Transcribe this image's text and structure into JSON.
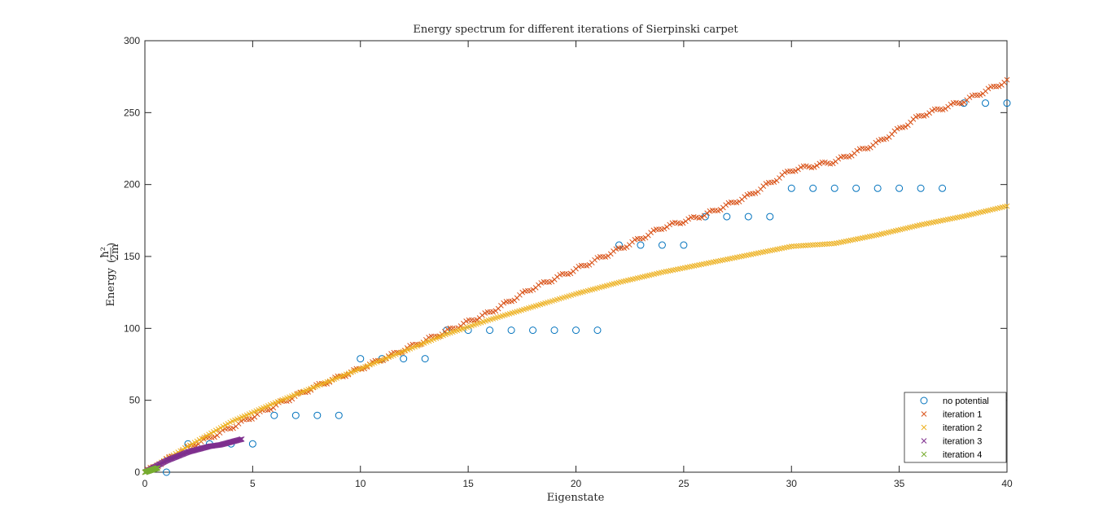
{
  "chart_data": {
    "type": "scatter",
    "title": "Energy spectrum for different iterations of Sierpinski carpet",
    "xlabel": "Eigenstate",
    "ylabel": "Energy",
    "ylabel_unit": {
      "numerator": "ħ²",
      "denominator": "2m"
    },
    "xlim": [
      0,
      40
    ],
    "ylim": [
      0,
      300
    ],
    "xticks": [
      0,
      5,
      10,
      15,
      20,
      25,
      30,
      35,
      40
    ],
    "yticks": [
      0,
      50,
      100,
      150,
      200,
      250,
      300
    ],
    "grid": false,
    "legend_placement": "bottom-right",
    "series": [
      {
        "name": "no potential",
        "marker": "circle",
        "color": "#0072BD",
        "x": [
          1,
          2,
          3,
          4,
          5,
          6,
          7,
          8,
          9,
          10,
          11,
          12,
          13,
          14,
          15,
          16,
          17,
          18,
          19,
          20,
          21,
          22,
          23,
          24,
          25,
          26,
          27,
          28,
          29,
          30,
          31,
          32,
          33,
          34,
          35,
          36,
          37,
          38,
          39,
          40
        ],
        "y": [
          0,
          19.7,
          19.7,
          19.7,
          19.7,
          39.5,
          39.5,
          39.5,
          39.5,
          78.9,
          78.9,
          78.9,
          78.9,
          98.7,
          98.7,
          98.7,
          98.7,
          98.7,
          98.7,
          98.7,
          98.7,
          157.9,
          157.9,
          157.9,
          157.9,
          177.7,
          177.7,
          177.7,
          177.7,
          197.4,
          197.4,
          197.4,
          197.4,
          197.4,
          197.4,
          197.4,
          197.4,
          256.6,
          256.6,
          256.6
        ]
      },
      {
        "name": "iteration 1",
        "marker": "x",
        "color": "#D95319",
        "x_range": [
          0,
          40
        ],
        "points": 323,
        "profile": [
          [
            0,
            0
          ],
          [
            2,
            17
          ],
          [
            4,
            31
          ],
          [
            6,
            46
          ],
          [
            8,
            60
          ],
          [
            10,
            72
          ],
          [
            12,
            85
          ],
          [
            14,
            98
          ],
          [
            16,
            111
          ],
          [
            18,
            128
          ],
          [
            20,
            141
          ],
          [
            22,
            155
          ],
          [
            24,
            170
          ],
          [
            26,
            179
          ],
          [
            28,
            192
          ],
          [
            30,
            210
          ],
          [
            32,
            216
          ],
          [
            34,
            229
          ],
          [
            36,
            248
          ],
          [
            38,
            258
          ],
          [
            40,
            272
          ]
        ]
      },
      {
        "name": "iteration 2",
        "marker": "x",
        "color": "#EDB120",
        "x_range": [
          0,
          40
        ],
        "points": 365,
        "profile": [
          [
            0,
            0
          ],
          [
            2,
            18
          ],
          [
            4,
            35
          ],
          [
            6,
            48
          ],
          [
            8,
            60
          ],
          [
            10,
            72
          ],
          [
            12,
            84
          ],
          [
            14,
            96
          ],
          [
            16,
            106
          ],
          [
            18,
            115
          ],
          [
            20,
            124
          ],
          [
            22,
            132
          ],
          [
            24,
            139
          ],
          [
            26,
            145
          ],
          [
            28,
            151
          ],
          [
            30,
            157
          ],
          [
            32,
            159
          ],
          [
            34,
            165
          ],
          [
            36,
            172
          ],
          [
            38,
            178
          ],
          [
            40,
            185
          ]
        ]
      },
      {
        "name": "iteration 3",
        "marker": "x",
        "color": "#7E2F8E",
        "x_range": [
          0,
          4.5
        ],
        "points": 120,
        "profile": [
          [
            0,
            0
          ],
          [
            0.5,
            4
          ],
          [
            1,
            8
          ],
          [
            1.5,
            11
          ],
          [
            2,
            14
          ],
          [
            2.5,
            16
          ],
          [
            3,
            18
          ],
          [
            3.5,
            19
          ],
          [
            4,
            21
          ],
          [
            4.5,
            23
          ]
        ]
      },
      {
        "name": "iteration 4",
        "marker": "x",
        "color": "#77AC30",
        "x_range": [
          0,
          0.6
        ],
        "points": 40,
        "profile": [
          [
            0,
            0
          ],
          [
            0.2,
            1
          ],
          [
            0.4,
            2
          ],
          [
            0.6,
            3
          ]
        ]
      }
    ]
  }
}
